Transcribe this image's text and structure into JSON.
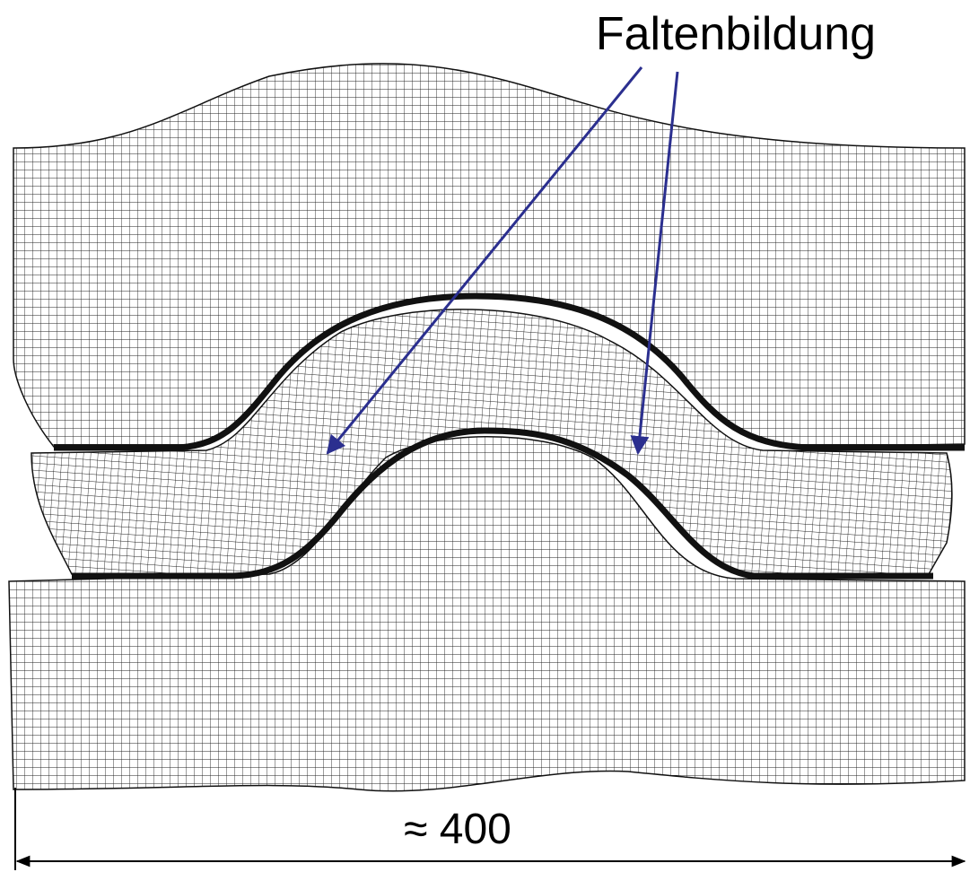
{
  "annotation": "Faltenbildung",
  "dimension": "≈ 400"
}
